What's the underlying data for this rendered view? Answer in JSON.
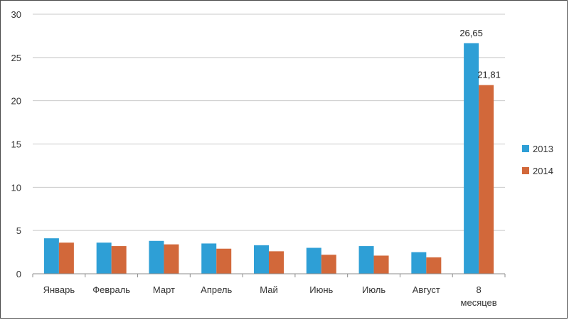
{
  "chart_data": {
    "type": "bar",
    "title": "",
    "xlabel": "",
    "ylabel": "",
    "categories": [
      "Январь",
      "Февраль",
      "Март",
      "Апрель",
      "Май",
      "Июнь",
      "Июль",
      "Август",
      "8 месяцев"
    ],
    "ylim": [
      0,
      30
    ],
    "yticks": [
      0,
      5,
      10,
      15,
      20,
      25,
      30
    ],
    "grid": true,
    "legend_position": "right",
    "series": [
      {
        "name": "2013",
        "color": "#2e9fd6",
        "values": [
          4.1,
          3.6,
          3.8,
          3.5,
          3.3,
          3.0,
          3.2,
          2.5,
          26.65
        ]
      },
      {
        "name": "2014",
        "color": "#d2683a",
        "values": [
          3.6,
          3.2,
          3.4,
          2.9,
          2.6,
          2.2,
          2.1,
          1.9,
          21.81
        ]
      }
    ],
    "data_labels": [
      {
        "series": 0,
        "index": 8,
        "text": "26,65"
      },
      {
        "series": 1,
        "index": 8,
        "text": "21,81"
      }
    ]
  }
}
